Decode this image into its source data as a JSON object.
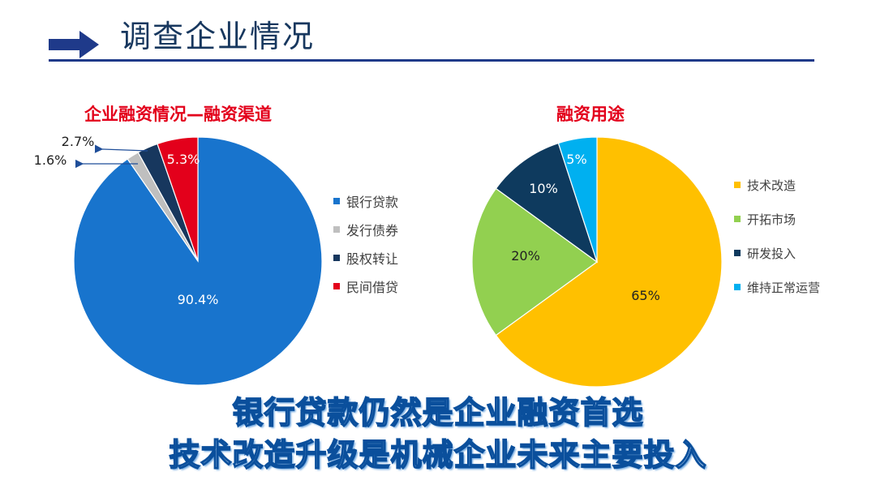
{
  "slide": {
    "title": "调查企业情况",
    "headlines": [
      "银行贷款仍然是企业融资首选",
      "技术改造升级是机械企业未来主要投入"
    ]
  },
  "chart_data": [
    {
      "type": "pie",
      "title": "企业融资情况—融资渠道",
      "categories": [
        "银行贷款",
        "发行债券",
        "股权转让",
        "民间借贷"
      ],
      "values": [
        90.4,
        1.6,
        2.7,
        5.3
      ],
      "labels": [
        "90.4%",
        "1.6%",
        "2.7%",
        "5.3%"
      ],
      "colors": [
        "#1874cd",
        "#bfbfbf",
        "#17375e",
        "#e3001b"
      ],
      "legend_position": "right"
    },
    {
      "type": "pie",
      "title": "融资用途",
      "categories": [
        "技术改造",
        "开拓市场",
        "研发投入",
        "维持正常运营"
      ],
      "values": [
        65,
        20,
        10,
        5
      ],
      "labels": [
        "65%",
        "20%",
        "10%",
        "5%"
      ],
      "colors": [
        "#ffc000",
        "#92d050",
        "#0e3a5e",
        "#00b0f0"
      ],
      "legend_position": "right"
    }
  ]
}
